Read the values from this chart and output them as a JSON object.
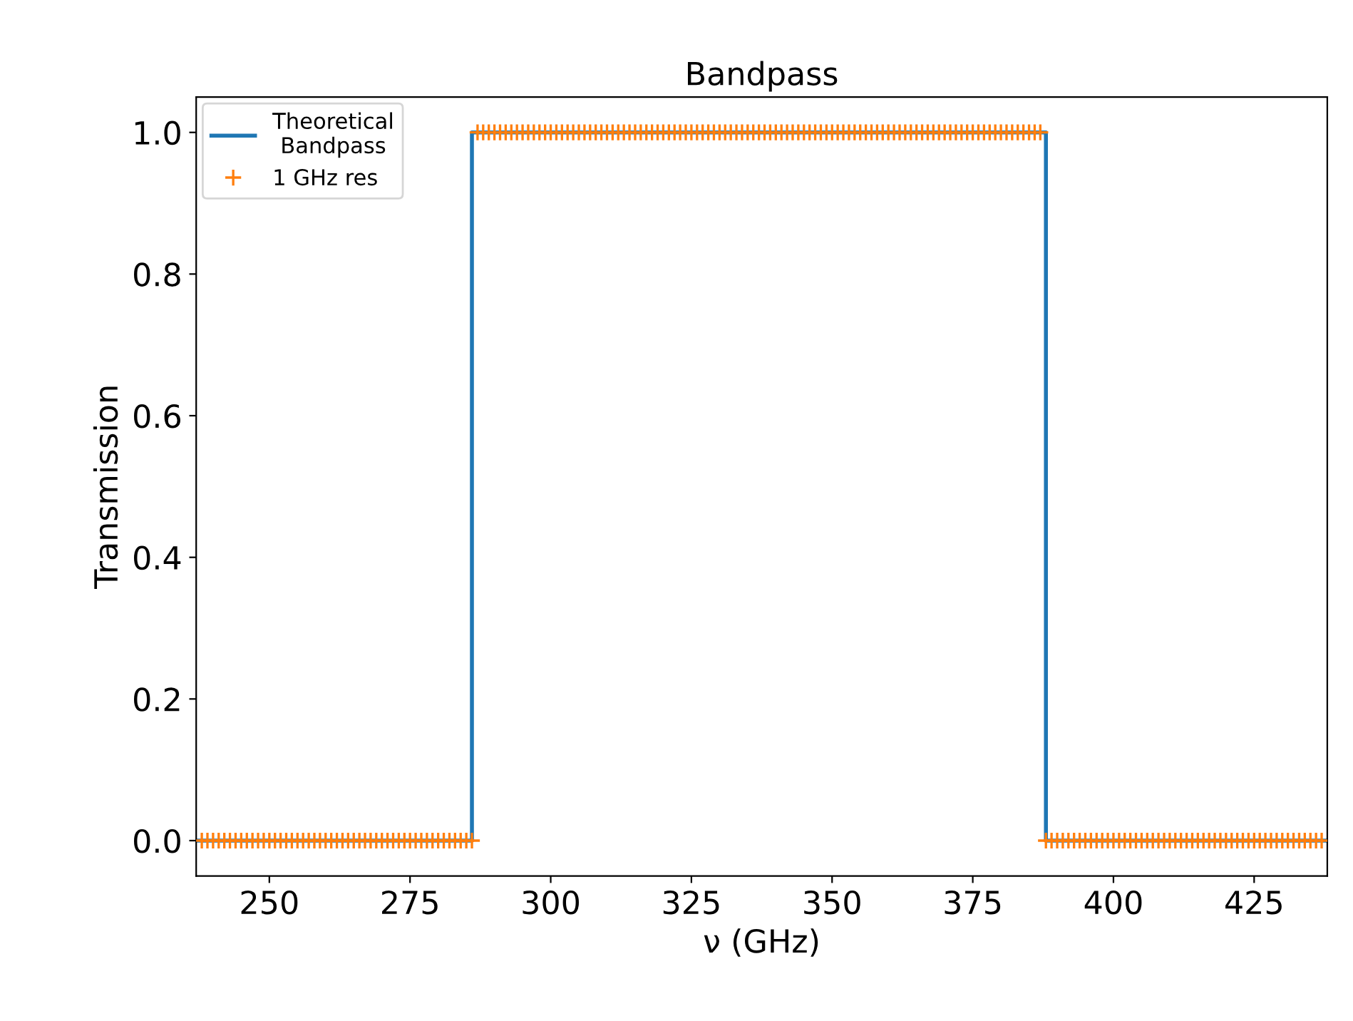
{
  "chart_data": {
    "type": "line",
    "title": "Bandpass",
    "xlabel": "ν (GHz)",
    "ylabel": "Transmission",
    "xlim": [
      237,
      438
    ],
    "ylim": [
      -0.05,
      1.05
    ],
    "xticks": [
      250,
      275,
      300,
      325,
      350,
      375,
      400,
      425
    ],
    "yticks": [
      {
        "value": 0,
        "label": "0.0"
      },
      {
        "value": 0.2,
        "label": "0.2"
      },
      {
        "value": 0.4,
        "label": "0.4"
      },
      {
        "value": 0.6,
        "label": "0.6"
      },
      {
        "value": 0.8,
        "label": "0.8"
      },
      {
        "value": 1,
        "label": "1.0"
      }
    ],
    "grid": false,
    "legend": "top left",
    "series": [
      {
        "name": "Theoretical\nBandpass",
        "color": "#1f77b4",
        "marker": "none",
        "line_style": "solid",
        "x": [
          237,
          286,
          286,
          388,
          388,
          438
        ],
        "values": [
          0,
          0,
          1,
          1,
          0,
          0
        ]
      },
      {
        "name": "1 GHz res",
        "type": "scatter",
        "color": "#ff7f0e",
        "marker": "cross",
        "x": [
          238,
          239,
          240,
          241,
          242,
          243,
          244,
          245,
          246,
          247,
          248,
          249,
          250,
          251,
          252,
          253,
          254,
          255,
          256,
          257,
          258,
          259,
          260,
          261,
          262,
          263,
          264,
          265,
          266,
          267,
          268,
          269,
          270,
          271,
          272,
          273,
          274,
          275,
          276,
          277,
          278,
          279,
          280,
          281,
          282,
          283,
          284,
          285,
          286,
          287,
          288,
          289,
          290,
          291,
          292,
          293,
          294,
          295,
          296,
          297,
          298,
          299,
          300,
          301,
          302,
          303,
          304,
          305,
          306,
          307,
          308,
          309,
          310,
          311,
          312,
          313,
          314,
          315,
          316,
          317,
          318,
          319,
          320,
          321,
          322,
          323,
          324,
          325,
          326,
          327,
          328,
          329,
          330,
          331,
          332,
          333,
          334,
          335,
          336,
          337,
          338,
          339,
          340,
          341,
          342,
          343,
          344,
          345,
          346,
          347,
          348,
          349,
          350,
          351,
          352,
          353,
          354,
          355,
          356,
          357,
          358,
          359,
          360,
          361,
          362,
          363,
          364,
          365,
          366,
          367,
          368,
          369,
          370,
          371,
          372,
          373,
          374,
          375,
          376,
          377,
          378,
          379,
          380,
          381,
          382,
          383,
          384,
          385,
          386,
          387,
          388,
          389,
          390,
          391,
          392,
          393,
          394,
          395,
          396,
          397,
          398,
          399,
          400,
          401,
          402,
          403,
          404,
          405,
          406,
          407,
          408,
          409,
          410,
          411,
          412,
          413,
          414,
          415,
          416,
          417,
          418,
          419,
          420,
          421,
          422,
          423,
          424,
          425,
          426,
          427,
          428,
          429,
          430,
          431,
          432,
          433,
          434,
          435,
          436,
          437
        ],
        "values": [
          0,
          0,
          0,
          0,
          0,
          0,
          0,
          0,
          0,
          0,
          0,
          0,
          0,
          0,
          0,
          0,
          0,
          0,
          0,
          0,
          0,
          0,
          0,
          0,
          0,
          0,
          0,
          0,
          0,
          0,
          0,
          0,
          0,
          0,
          0,
          0,
          0,
          0,
          0,
          0,
          0,
          0,
          0,
          0,
          0,
          0,
          0,
          0,
          0,
          1,
          1,
          1,
          1,
          1,
          1,
          1,
          1,
          1,
          1,
          1,
          1,
          1,
          1,
          1,
          1,
          1,
          1,
          1,
          1,
          1,
          1,
          1,
          1,
          1,
          1,
          1,
          1,
          1,
          1,
          1,
          1,
          1,
          1,
          1,
          1,
          1,
          1,
          1,
          1,
          1,
          1,
          1,
          1,
          1,
          1,
          1,
          1,
          1,
          1,
          1,
          1,
          1,
          1,
          1,
          1,
          1,
          1,
          1,
          1,
          1,
          1,
          1,
          1,
          1,
          1,
          1,
          1,
          1,
          1,
          1,
          1,
          1,
          1,
          1,
          1,
          1,
          1,
          1,
          1,
          1,
          1,
          1,
          1,
          1,
          1,
          1,
          1,
          1,
          1,
          1,
          1,
          1,
          1,
          1,
          1,
          1,
          1,
          1,
          1,
          1,
          0,
          0,
          0,
          0,
          0,
          0,
          0,
          0,
          0,
          0,
          0,
          0,
          0,
          0,
          0,
          0,
          0,
          0,
          0,
          0,
          0,
          0,
          0,
          0,
          0,
          0,
          0,
          0,
          0,
          0,
          0,
          0,
          0,
          0,
          0,
          0,
          0,
          0,
          0,
          0,
          0,
          0,
          0,
          0,
          0,
          0,
          0,
          0,
          0,
          0
        ]
      }
    ]
  }
}
